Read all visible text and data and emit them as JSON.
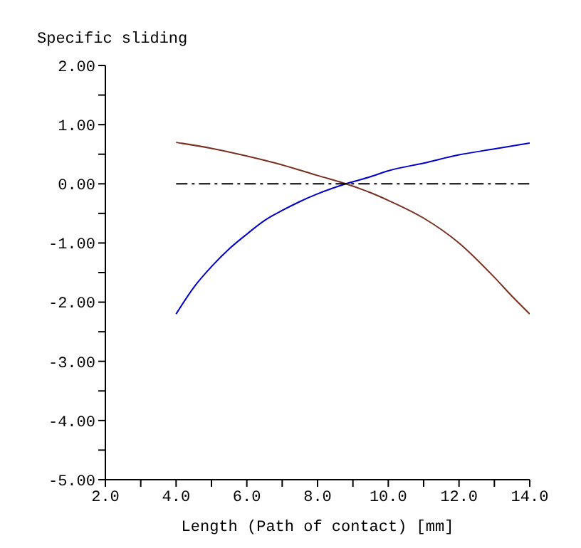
{
  "chart_data": {
    "type": "line",
    "ylabel": "Specific sliding",
    "xlabel": "Length (Path of contact) [mm]",
    "xlim": [
      2,
      14
    ],
    "ylim": [
      -5,
      2
    ],
    "xticks": [
      {
        "value": 2,
        "label": "2.0"
      },
      {
        "value": 3,
        "label": null
      },
      {
        "value": 4,
        "label": "4.0"
      },
      {
        "value": 5,
        "label": null
      },
      {
        "value": 6,
        "label": "6.0"
      },
      {
        "value": 7,
        "label": null
      },
      {
        "value": 8,
        "label": "8.0"
      },
      {
        "value": 9,
        "label": null
      },
      {
        "value": 10,
        "label": "10.0"
      },
      {
        "value": 11,
        "label": null
      },
      {
        "value": 12,
        "label": "12.0"
      },
      {
        "value": 13,
        "label": null
      },
      {
        "value": 14,
        "label": "14.0"
      }
    ],
    "yticks": [
      {
        "value": -5,
        "label": "-5.00"
      },
      {
        "value": -4.5,
        "label": null
      },
      {
        "value": -4,
        "label": "-4.00"
      },
      {
        "value": -3.5,
        "label": null
      },
      {
        "value": -3,
        "label": "-3.00"
      },
      {
        "value": -2.5,
        "label": null
      },
      {
        "value": -2,
        "label": "-2.00"
      },
      {
        "value": -1.5,
        "label": null
      },
      {
        "value": -1,
        "label": "-1.00"
      },
      {
        "value": -0.5,
        "label": null
      },
      {
        "value": 0,
        "label": "0.00"
      },
      {
        "value": 0.5,
        "label": null
      },
      {
        "value": 1,
        "label": "1.00"
      },
      {
        "value": 1.5,
        "label": null
      },
      {
        "value": 2,
        "label": "2.00"
      }
    ],
    "marker": "none",
    "series": [
      {
        "color": "#0000cc",
        "x": [
          4,
          4.5,
          5,
          5.5,
          6,
          6.5,
          7,
          7.5,
          8,
          8.8,
          9.5,
          10,
          11,
          12,
          13,
          14
        ],
        "values": [
          -2.2,
          -1.75,
          -1.4,
          -1.1,
          -0.85,
          -0.62,
          -0.45,
          -0.3,
          -0.17,
          0,
          0.12,
          0.22,
          0.35,
          0.49,
          0.59,
          0.69
        ]
      },
      {
        "color": "#7a3020",
        "x": [
          4,
          5,
          6,
          7,
          8,
          8.8,
          9.5,
          10,
          11,
          12,
          13,
          13.5,
          14
        ],
        "values": [
          0.7,
          0.6,
          0.47,
          0.32,
          0.14,
          0,
          -0.15,
          -0.28,
          -0.58,
          -1.0,
          -1.58,
          -1.9,
          -2.2
        ]
      },
      {
        "color": "#000000",
        "line_style": "dashed",
        "x": [
          4,
          14
        ],
        "values": [
          0,
          0
        ]
      }
    ]
  }
}
